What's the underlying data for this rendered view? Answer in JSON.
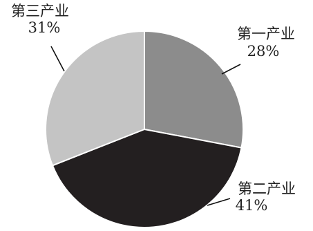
{
  "chart_data": {
    "type": "pie",
    "title": "",
    "slices": [
      {
        "label": "第一产业",
        "value": 28,
        "value_label": "28%",
        "color": "#8c8c8c"
      },
      {
        "label": "第二产业",
        "value": 41,
        "value_label": "41%",
        "color": "#231f20"
      },
      {
        "label": "第三产业",
        "value": 31,
        "value_label": "31%",
        "color": "#c4c4c4"
      }
    ],
    "start": "12 o'clock",
    "direction": "clockwise",
    "legend": "none",
    "labels": "outside with leader lines"
  }
}
